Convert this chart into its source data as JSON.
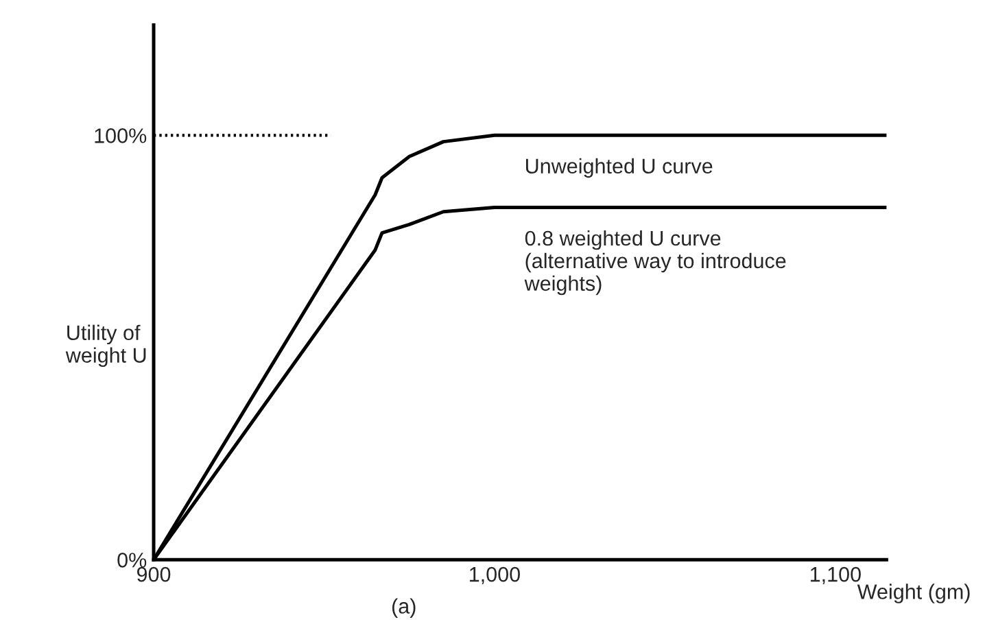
{
  "chart_data": {
    "type": "line",
    "xlabel": "Weight (gm)",
    "ylabel": "Utility of\nweight U",
    "xlim": [
      900,
      1115
    ],
    "ylim": [
      0,
      126
    ],
    "xticks": [
      900,
      {
        "value": 1000,
        "label": "1,000"
      },
      {
        "value": 1100,
        "label": "1,100"
      }
    ],
    "yticks": [
      {
        "value": 0,
        "label": "0%"
      },
      {
        "value": 100,
        "label": "100%"
      }
    ],
    "grid": false,
    "legend": false,
    "series": [
      {
        "name": "Unweighted U curve",
        "color": "#000000",
        "line_style": "solid",
        "x": [
          900,
          965,
          967,
          975,
          985,
          1000,
          1115
        ],
        "values": [
          0,
          86,
          90,
          95,
          98.5,
          100,
          100
        ]
      },
      {
        "name": "0.8 weighted U curve\n(alternative way to introduce\nweights)",
        "color": "#000000",
        "line_style": "solid",
        "x": [
          900,
          965,
          967,
          975,
          985,
          1000,
          1115
        ],
        "values": [
          0,
          73,
          77,
          79,
          82,
          83,
          83
        ]
      },
      {
        "color": "#000000",
        "line_style": "dotted",
        "x": [
          900,
          952
        ],
        "values": [
          100,
          100
        ]
      }
    ],
    "annotations": [
      "(a)"
    ]
  }
}
